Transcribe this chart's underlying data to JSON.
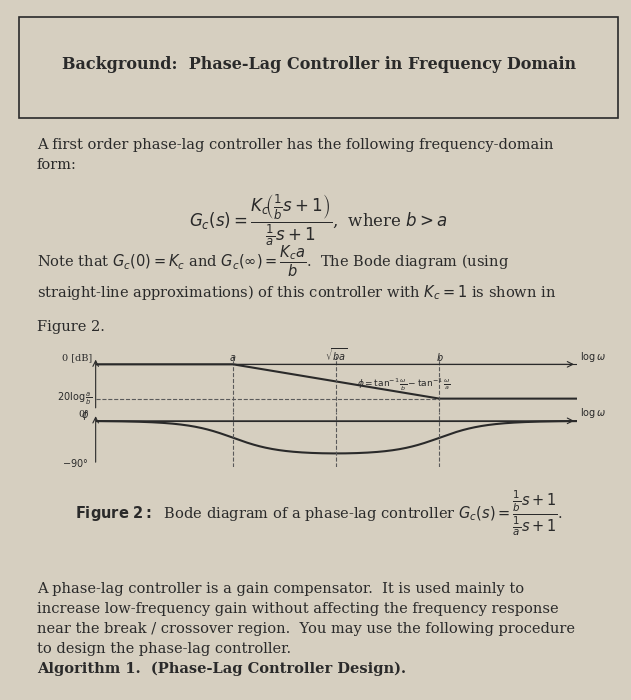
{
  "bg_color": "#d6cfc0",
  "title_box_text": "Background:  Phase-Lag Controller in Frequency Domain",
  "body_text_1": "A first order phase-lag controller has the following frequency-domain\nform:",
  "eq1_text": "$G_c(s) = \\dfrac{K_c\\left(\\frac{1}{b}s+1\\right)}{\\frac{1}{a}s+1}$,  where $b > a$",
  "body_text_2": "Note that $G_c(0) = K_c$ and $G_c(\\infty) = \\dfrac{K_c a}{b}$.  The Bode diagram (using\nstraight-line approximations) of this controller with $K_c = 1$ is shown in\nFigure 2.",
  "figure_caption": "Figure 2:  Bode diagram of a phase-lag controller $G_c(s) = \\dfrac{\\frac{1}{b}s+1}{\\frac{1}{a}s+1}$.",
  "body_text_3": "A phase-lag controller is a gain compensator.  It is used mainly to\nincrease low-frequency gain without affecting the frequency response\nnear the break / crossover region.  You may use the following procedure\nto design the phase-lag controller.",
  "footer_text": "Algorithm 1.  (Phase-Lag Controller Design).",
  "text_color": "#2a2a2a",
  "line_color": "#2a2a2a",
  "dashed_color": "#5a5a5a",
  "plot_bg": "#d6cfc0",
  "font_size_body": 10.5,
  "font_size_title": 11.5
}
